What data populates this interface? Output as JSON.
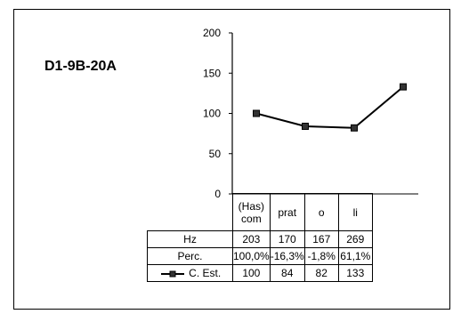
{
  "chart_data": {
    "type": "line",
    "title": "D1-9B-20A",
    "categories": [
      "(Has)\ncom",
      "prat",
      "o",
      "li"
    ],
    "series": [
      {
        "name": "C. Est.",
        "values": [
          100,
          84,
          82,
          133
        ],
        "marker": "square"
      }
    ],
    "ylim": [
      0,
      200
    ],
    "yticks": [
      0,
      50,
      100,
      150,
      200
    ],
    "grid": false,
    "table": {
      "rows": [
        {
          "label": "Hz",
          "values": [
            "203",
            "170",
            "167",
            "269"
          ]
        },
        {
          "label": "Perc.",
          "values": [
            "100,0%",
            "-16,3%",
            "-1,8%",
            "61,1%"
          ]
        },
        {
          "label": "C. Est.",
          "values": [
            "100",
            "84",
            "82",
            "133"
          ]
        }
      ]
    },
    "colors": {
      "line": "#000000",
      "marker": "#333333"
    }
  }
}
